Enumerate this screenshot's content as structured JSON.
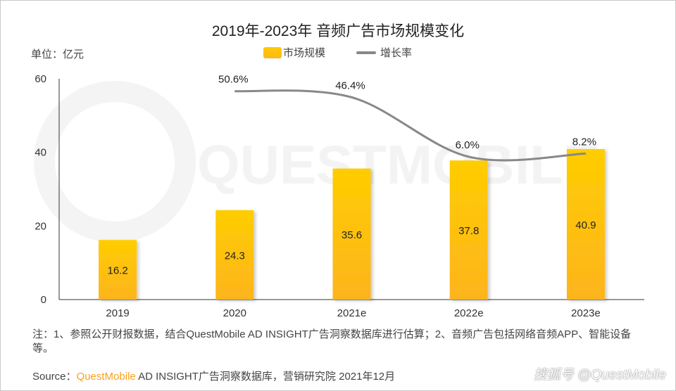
{
  "chart_data": {
    "type": "bar",
    "title": "2019年-2023年 音频广告市场规模变化",
    "unit_label": "单位：亿元",
    "categories": [
      "2019",
      "2020",
      "2021e",
      "2022e",
      "2023e"
    ],
    "ylim": [
      0,
      60
    ],
    "yticks": [
      "0",
      "20",
      "40",
      "60"
    ],
    "grid": false,
    "legend_placement": "top-center",
    "series": [
      {
        "name": "市场规模",
        "type": "bar",
        "values": [
          16.2,
          24.3,
          35.6,
          37.8,
          40.9
        ],
        "labels": [
          "16.2",
          "24.3",
          "35.6",
          "37.8",
          "40.9"
        ],
        "color": "#fdc20a"
      },
      {
        "name": "增长率",
        "type": "line",
        "axis": "secondary",
        "smooth": true,
        "values": [
          null,
          50.6,
          46.4,
          6.0,
          8.2
        ],
        "labels": [
          "",
          "50.6%",
          "46.4%",
          "6.0%",
          "8.2%"
        ],
        "color": "#888888"
      }
    ],
    "y2lim": [
      -91,
      59
    ]
  },
  "watermark": "QUESTMOBILE",
  "footer": {
    "note": "注：1、参照公开财报数据，结合QuestMobile AD INSIGHT广告洞察数据库进行估算；2、音频广告包括网络音频APP、智能设备等。",
    "source_prefix": "Source：",
    "source_brand": "QuestMobile",
    "source_rest": " AD INSIGHT广告洞察数据库，营销研究院 2021年12月",
    "credit": "搜狐号 @QuestMobile"
  }
}
